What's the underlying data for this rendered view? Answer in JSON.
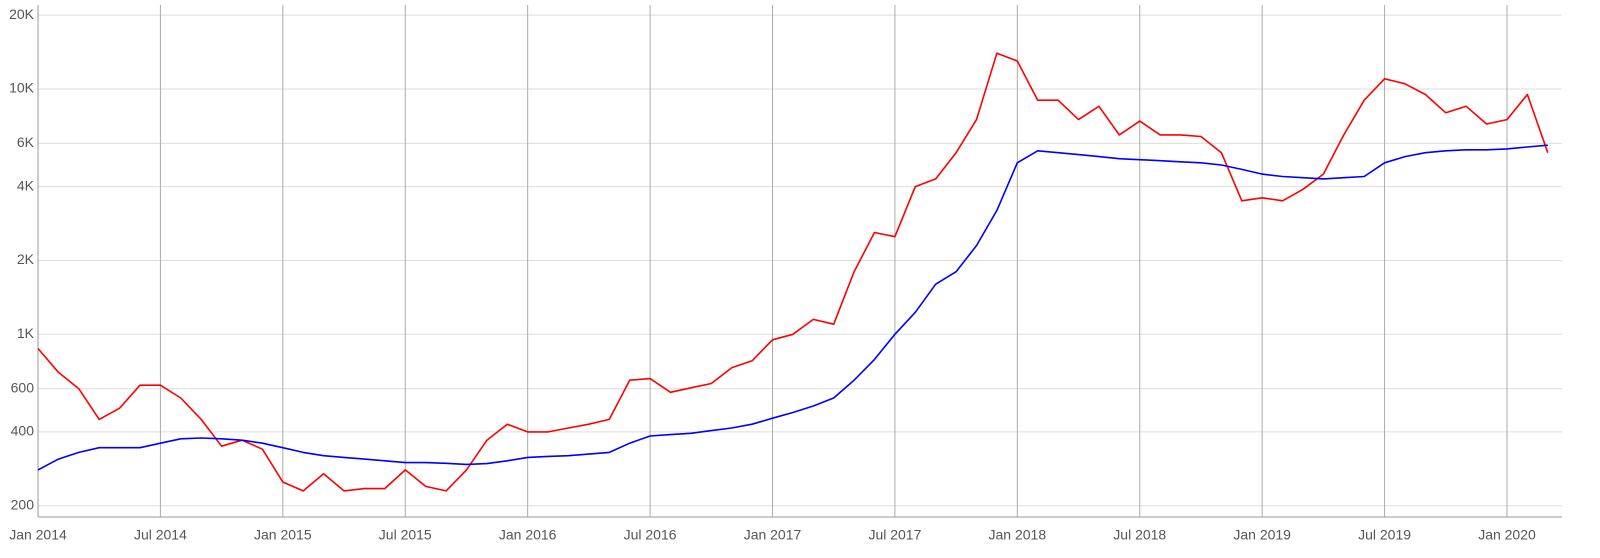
{
  "chart_data": {
    "type": "line",
    "x": [
      "2014-01",
      "2014-02",
      "2014-03",
      "2014-04",
      "2014-05",
      "2014-06",
      "2014-07",
      "2014-08",
      "2014-09",
      "2014-10",
      "2014-11",
      "2014-12",
      "2015-01",
      "2015-02",
      "2015-03",
      "2015-04",
      "2015-05",
      "2015-06",
      "2015-07",
      "2015-08",
      "2015-09",
      "2015-10",
      "2015-11",
      "2015-12",
      "2016-01",
      "2016-02",
      "2016-03",
      "2016-04",
      "2016-05",
      "2016-06",
      "2016-07",
      "2016-08",
      "2016-09",
      "2016-10",
      "2016-11",
      "2016-12",
      "2017-01",
      "2017-02",
      "2017-03",
      "2017-04",
      "2017-05",
      "2017-06",
      "2017-07",
      "2017-08",
      "2017-09",
      "2017-10",
      "2017-11",
      "2017-12",
      "2018-01",
      "2018-02",
      "2018-03",
      "2018-04",
      "2018-05",
      "2018-06",
      "2018-07",
      "2018-08",
      "2018-09",
      "2018-10",
      "2018-11",
      "2018-12",
      "2019-01",
      "2019-02",
      "2019-03",
      "2019-04",
      "2019-05",
      "2019-06",
      "2019-07",
      "2019-08",
      "2019-09",
      "2019-10",
      "2019-11",
      "2019-12",
      "2020-01",
      "2020-02",
      "2020-03"
    ],
    "series": [
      {
        "color": "#ff0000",
        "values": [
          875,
          700,
          600,
          450,
          500,
          620,
          620,
          550,
          450,
          350,
          370,
          340,
          250,
          230,
          270,
          230,
          235,
          235,
          280,
          240,
          230,
          280,
          370,
          430,
          400,
          400,
          415,
          430,
          450,
          650,
          660,
          580,
          605,
          630,
          730,
          780,
          950,
          1000,
          1150,
          1100,
          1800,
          2600,
          2500,
          4000,
          4300,
          5500,
          7500,
          14000,
          13000,
          9000,
          9000,
          7500,
          8500,
          6500,
          7400,
          6500,
          6500,
          6400,
          5500,
          3500,
          3600,
          3500,
          3900,
          4500,
          6500,
          9000,
          11000,
          10500,
          9500,
          8000,
          8500,
          7200,
          7500,
          9500,
          5500
        ]
      },
      {
        "color": "#0000ff",
        "values": [
          280,
          310,
          330,
          345,
          345,
          345,
          360,
          375,
          378,
          375,
          370,
          360,
          345,
          330,
          320,
          315,
          310,
          305,
          300,
          300,
          298,
          295,
          297,
          305,
          315,
          318,
          320,
          325,
          330,
          360,
          385,
          390,
          395,
          405,
          415,
          430,
          455,
          480,
          510,
          550,
          650,
          790,
          1000,
          1230,
          1600,
          1800,
          2300,
          3200,
          5000,
          5600,
          5500,
          5400,
          5300,
          5200,
          5150,
          5100,
          5050,
          5000,
          4900,
          4700,
          4500,
          4400,
          4350,
          4300,
          4350,
          4400,
          5000,
          5300,
          5500,
          5600,
          5650,
          5650,
          5700,
          5800,
          5900
        ]
      }
    ],
    "log_scale": true,
    "grid": true,
    "ylim": [
      180,
      22000
    ],
    "yticks": [
      200,
      400,
      600,
      {
        "value": 1000,
        "label": "1K"
      },
      {
        "value": 2000,
        "label": "2K"
      },
      {
        "value": 4000,
        "label": "4K"
      },
      {
        "value": 6000,
        "label": "6K"
      },
      {
        "value": 10000,
        "label": "10K"
      },
      {
        "value": 20000,
        "label": "20K"
      }
    ],
    "xticks": [
      {
        "value": "2014-01",
        "label": "Jan 2014"
      },
      {
        "value": "2014-07",
        "label": "Jul 2014"
      },
      {
        "value": "2015-01",
        "label": "Jan 2015"
      },
      {
        "value": "2015-07",
        "label": "Jul 2015"
      },
      {
        "value": "2016-01",
        "label": "Jan 2016"
      },
      {
        "value": "2016-07",
        "label": "Jul 2016"
      },
      {
        "value": "2017-01",
        "label": "Jan 2017"
      },
      {
        "value": "2017-07",
        "label": "Jul 2017"
      },
      {
        "value": "2018-01",
        "label": "Jan 2018"
      },
      {
        "value": "2018-07",
        "label": "Jul 2018"
      },
      {
        "value": "2019-01",
        "label": "Jan 2019"
      },
      {
        "value": "2019-07",
        "label": "Jul 2019"
      },
      {
        "value": "2020-01",
        "label": "Jan 2020"
      }
    ]
  }
}
